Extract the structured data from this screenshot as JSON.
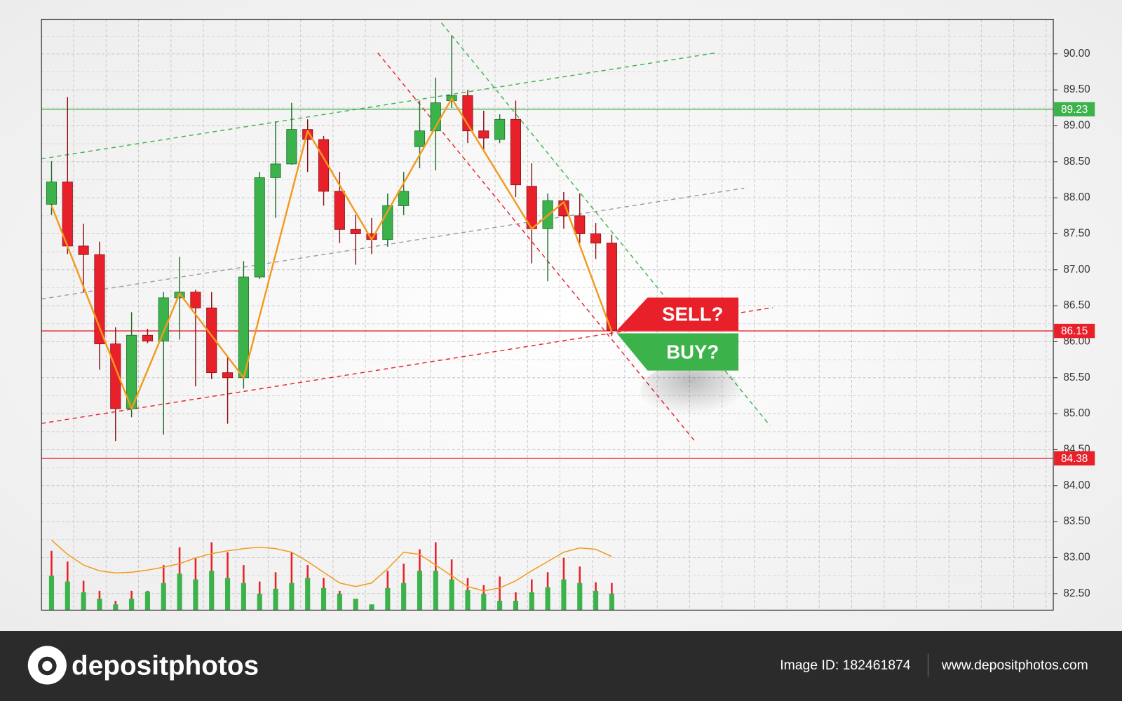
{
  "chart_data": {
    "type": "candlestick",
    "ylim": [
      82.27,
      90.48
    ],
    "yticks": [
      {
        "value": 82.5,
        "label": "82.50"
      },
      {
        "value": 83,
        "label": "83.00"
      },
      {
        "value": 83.5,
        "label": "83.50"
      },
      {
        "value": 84,
        "label": "84.00"
      },
      {
        "value": 84.5,
        "label": "84.50"
      },
      {
        "value": 85,
        "label": "85.00"
      },
      {
        "value": 85.5,
        "label": "85.50"
      },
      {
        "value": 86,
        "label": "86.00"
      },
      {
        "value": 86.5,
        "label": "86.50"
      },
      {
        "value": 87,
        "label": "87.00"
      },
      {
        "value": 87.5,
        "label": "87.50"
      },
      {
        "value": 88,
        "label": "88.00"
      },
      {
        "value": 88.5,
        "label": "88.50"
      },
      {
        "value": 89,
        "label": "89.00"
      },
      {
        "value": 89.5,
        "label": "89.50"
      },
      {
        "value": 90,
        "label": "90.00"
      }
    ],
    "grid": true,
    "up_color": "#3cb34a",
    "down_color": "#e8202a",
    "open": [
      87.91,
      88.22,
      87.33,
      87.21,
      85.97,
      85.07,
      86.09,
      86.01,
      86.61,
      86.69,
      86.47,
      85.57,
      85.5,
      86.9,
      88.28,
      88.47,
      88.95,
      88.81,
      88.09,
      87.56,
      87.5,
      87.42,
      87.89,
      88.71,
      88.93,
      89.35,
      89.42,
      88.93,
      88.81,
      89.09,
      88.16,
      87.57,
      87.96,
      87.75,
      87.5,
      87.37
    ],
    "high": [
      88.51,
      89.4,
      87.64,
      87.39,
      86.2,
      86.41,
      86.18,
      86.69,
      87.18,
      86.72,
      86.69,
      85.78,
      87.12,
      88.36,
      89.06,
      89.32,
      89.09,
      88.86,
      88.36,
      87.76,
      87.72,
      88.06,
      88.36,
      89.35,
      89.67,
      90.25,
      89.5,
      89.21,
      89.16,
      89.35,
      88.48,
      88.06,
      88.08,
      88.06,
      87.65,
      87.49
    ],
    "low": [
      87.76,
      87.22,
      86.69,
      85.61,
      84.62,
      84.95,
      85.98,
      84.71,
      86.03,
      85.38,
      85.48,
      84.86,
      85.35,
      86.87,
      87.72,
      88.46,
      88.36,
      87.89,
      87.37,
      87.07,
      87.22,
      87.32,
      87.76,
      88.41,
      88.38,
      89.25,
      88.76,
      88.66,
      88.76,
      88.01,
      87.09,
      86.84,
      87.57,
      87.37,
      87.15,
      86.08
    ],
    "close": [
      88.22,
      87.33,
      87.21,
      85.97,
      85.07,
      86.09,
      86.01,
      86.61,
      86.69,
      86.47,
      85.57,
      85.5,
      86.9,
      88.28,
      88.47,
      88.95,
      88.81,
      88.09,
      87.56,
      87.5,
      87.42,
      87.89,
      88.09,
      88.93,
      89.32,
      89.42,
      88.93,
      88.83,
      89.09,
      88.18,
      87.57,
      87.96,
      87.75,
      87.5,
      87.37,
      86.16
    ],
    "volume": [
      48,
      40,
      25,
      16,
      8,
      16,
      26,
      38,
      51,
      43,
      55,
      45,
      38,
      23,
      30,
      38,
      45,
      31,
      23,
      16,
      8,
      31,
      38,
      55,
      55,
      43,
      28,
      23,
      13,
      13,
      25,
      32,
      43,
      38,
      27,
      23
    ],
    "volume_peak": [
      83,
      68,
      41,
      27,
      13,
      27,
      27,
      63,
      88,
      73,
      95,
      81,
      63,
      40,
      53,
      81,
      63,
      45,
      27,
      14,
      8,
      55,
      65,
      85,
      95,
      71,
      45,
      35,
      47,
      25,
      43,
      53,
      73,
      61,
      39,
      38
    ],
    "volume_average": [
      98,
      78,
      63,
      55,
      52,
      53,
      56,
      60,
      65,
      73,
      79,
      83,
      86,
      88,
      86,
      81,
      68,
      53,
      38,
      33,
      38,
      58,
      81,
      78,
      63,
      48,
      33,
      27,
      31,
      41,
      55,
      68,
      81,
      87,
      85,
      75
    ],
    "volume_color": "#3cb34a",
    "volume_peak_color": "#e8202a",
    "volume_average_color": "#f39a1e",
    "zigzag": {
      "index": [
        0,
        5,
        8,
        12,
        16,
        20,
        25,
        30,
        32,
        35
      ],
      "values": [
        87.89,
        85.07,
        86.67,
        85.5,
        88.93,
        87.42,
        89.38,
        87.57,
        87.94,
        86.14
      ],
      "color": "#f39a1e"
    },
    "levels": [
      {
        "value": 89.23,
        "color": "#3cb34a"
      },
      {
        "value": 86.15,
        "color": "#e8202a"
      },
      {
        "value": 84.38,
        "color": "#e8202a"
      }
    ]
  },
  "signals": {
    "sell": "SELL?",
    "buy": "BUY?"
  },
  "footer": {
    "brand": "depositphotos",
    "image_id": "Image ID: 182461874",
    "website": "www.depositphotos.com"
  }
}
